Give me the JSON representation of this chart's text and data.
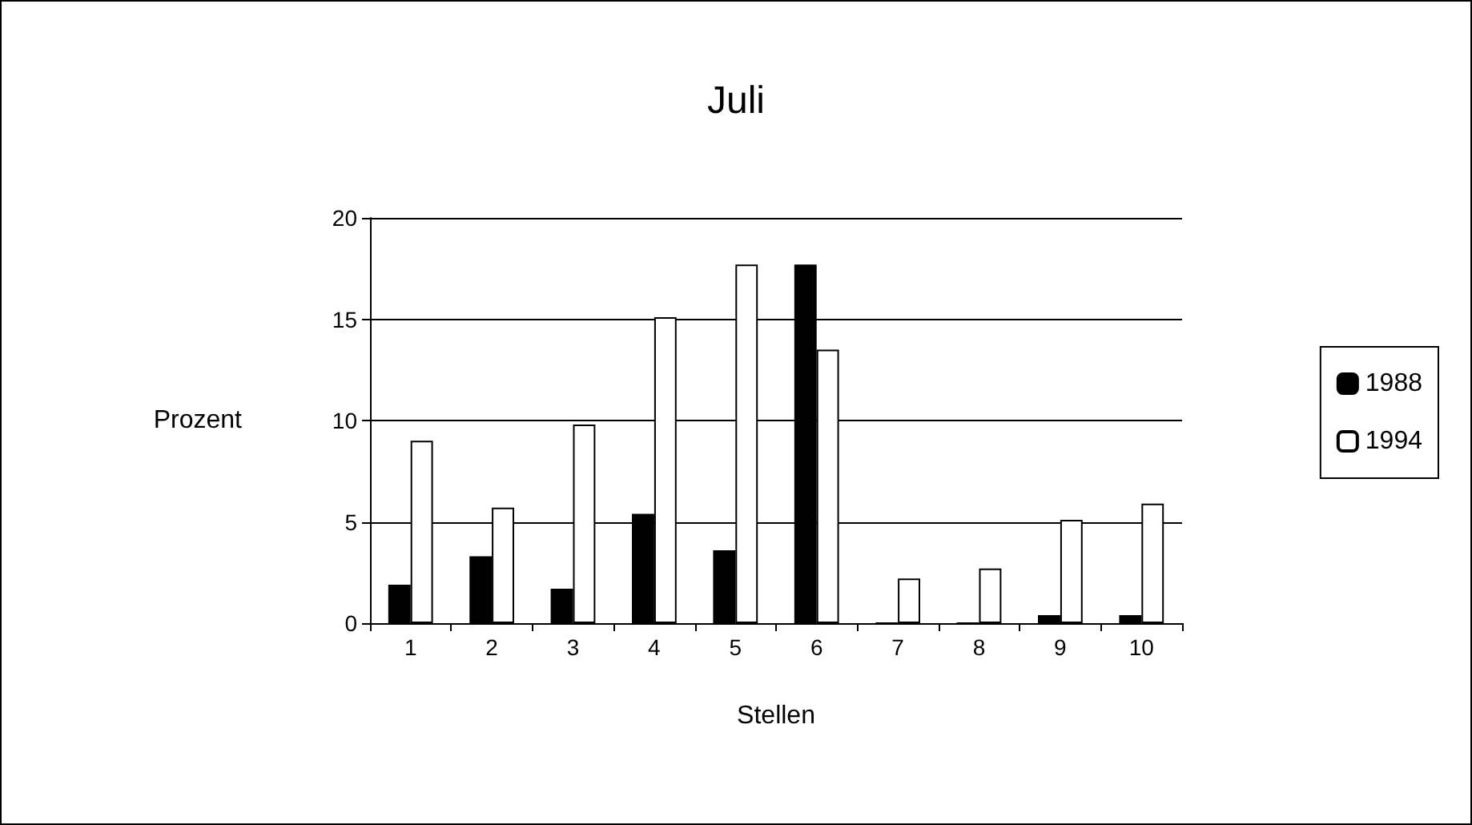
{
  "chart_data": {
    "type": "bar",
    "title": "Juli",
    "xlabel": "Stellen",
    "ylabel": "Prozent",
    "categories": [
      "1",
      "2",
      "3",
      "4",
      "5",
      "6",
      "7",
      "8",
      "9",
      "10"
    ],
    "series": [
      {
        "name": "1988",
        "color": "#000000",
        "values": [
          1.9,
          3.3,
          1.7,
          5.4,
          3.6,
          17.7,
          0,
          0,
          0.4,
          0.4
        ]
      },
      {
        "name": "1994",
        "color": "#ffffff",
        "values": [
          9.0,
          5.7,
          9.8,
          15.1,
          17.7,
          13.5,
          2.2,
          2.7,
          5.1,
          5.9
        ]
      }
    ],
    "ylim": [
      0,
      20
    ],
    "yticks": [
      0,
      5,
      10,
      15,
      20
    ],
    "grid": "y",
    "legend": "right"
  }
}
